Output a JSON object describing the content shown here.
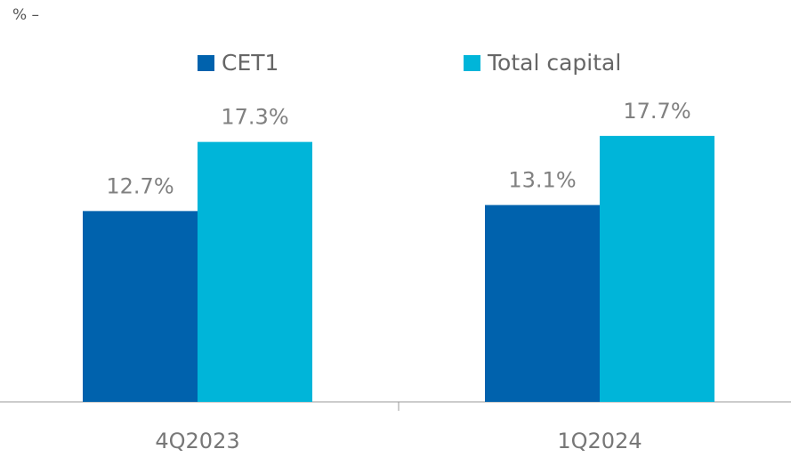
{
  "chart_data": {
    "type": "bar",
    "y_label": "% –",
    "categories": [
      "4Q2023",
      "1Q2024"
    ],
    "series": [
      {
        "name": "CET1",
        "color": "#0062ad",
        "values": [
          12.7,
          13.1
        ],
        "value_labels": [
          "12.7%",
          "13.1%"
        ]
      },
      {
        "name": "Total capital",
        "color": "#00b5d9",
        "values": [
          17.3,
          17.7
        ],
        "value_labels": [
          "17.3%",
          "17.7%"
        ]
      }
    ],
    "ylim": [
      0,
      20
    ]
  }
}
